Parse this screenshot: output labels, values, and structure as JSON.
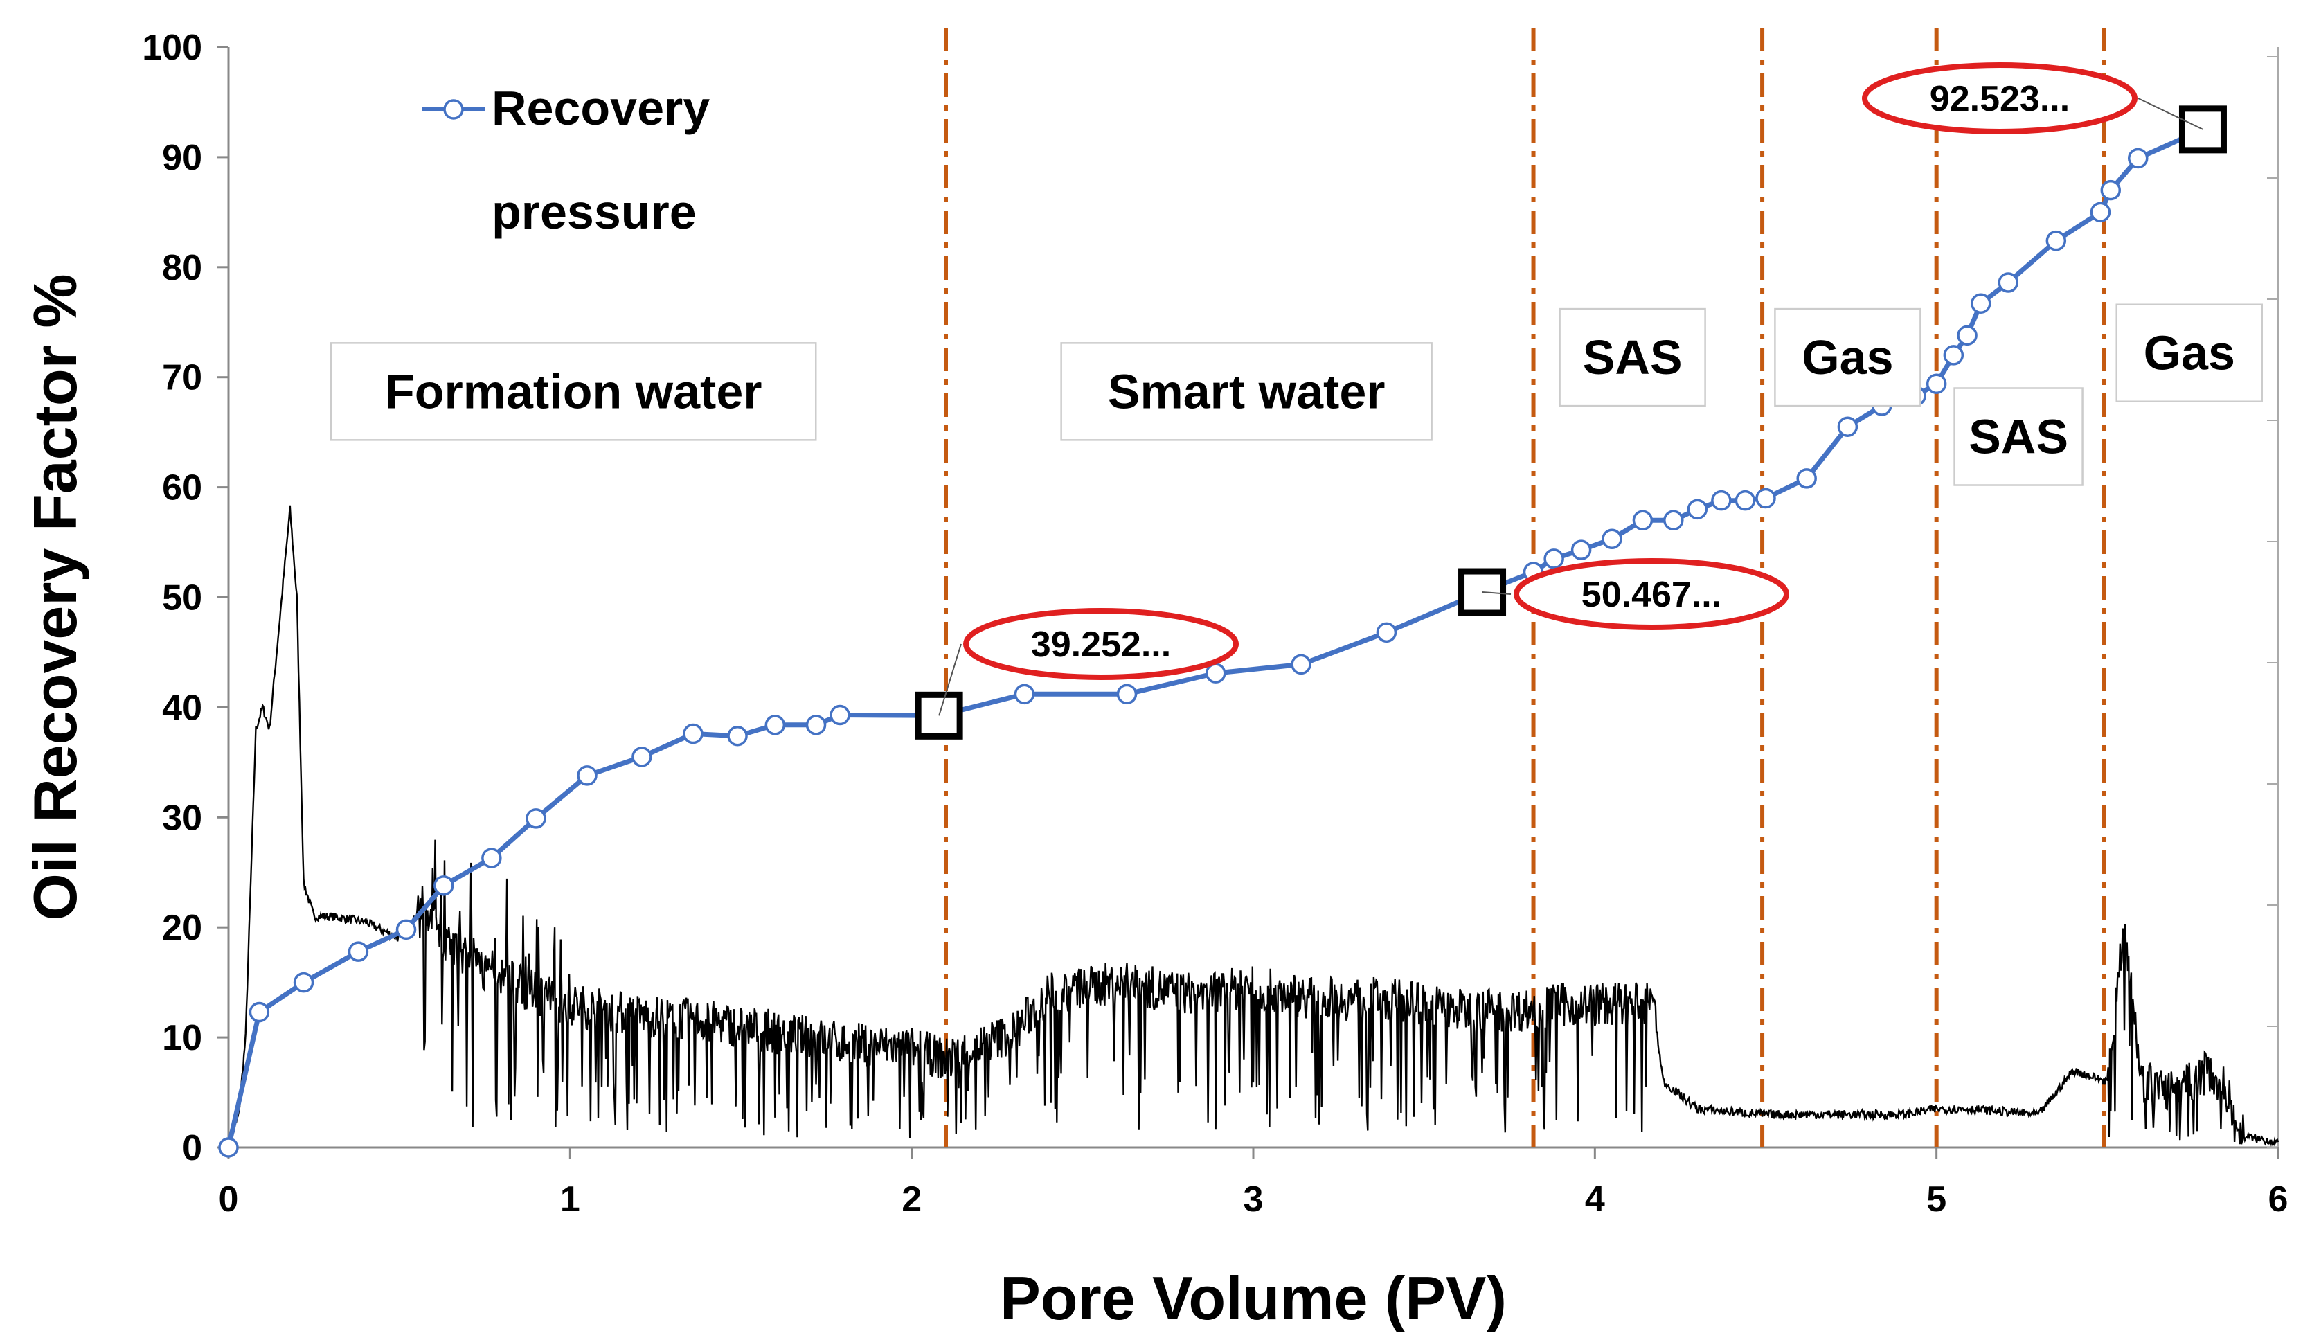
{
  "chart_data": {
    "type": "line",
    "xlabel": "Pore Volume (PV)",
    "ylabel": "Oil Recovery Factor %",
    "xlim": [
      0,
      6
    ],
    "ylim": [
      0,
      100
    ],
    "x_ticks": [
      "0",
      "1",
      "2",
      "3",
      "4",
      "5",
      "6"
    ],
    "y_ticks": [
      "0",
      "10",
      "20",
      "30",
      "40",
      "50",
      "60",
      "70",
      "80",
      "90",
      "100"
    ],
    "legend": {
      "placement": "top-left",
      "entries": [
        {
          "name": "Recovery",
          "color": "#4472C4",
          "marker": "circle"
        },
        {
          "name": "pressure",
          "color": "#000000",
          "marker": "none"
        }
      ]
    },
    "series": [
      {
        "name": "Recovery",
        "color": "#4472C4",
        "x": [
          0,
          0.09,
          0.22,
          0.38,
          0.52,
          0.63,
          0.77,
          0.9,
          1.05,
          1.21,
          1.36,
          1.49,
          1.6,
          1.72,
          1.79,
          2.08,
          2.33,
          2.63,
          2.89,
          3.14,
          3.39,
          3.67,
          3.82,
          3.88,
          3.96,
          4.05,
          4.14,
          4.23,
          4.3,
          4.37,
          4.44,
          4.5,
          4.62,
          4.74,
          4.84,
          4.94,
          5.0,
          5.05,
          5.09,
          5.13,
          5.21,
          5.35,
          5.48,
          5.51,
          5.59,
          5.78
        ],
        "values": [
          0,
          12.3,
          15.0,
          17.8,
          19.8,
          23.8,
          26.3,
          29.9,
          33.8,
          35.5,
          37.6,
          37.4,
          38.4,
          38.4,
          39.3,
          39.25,
          41.2,
          41.2,
          43.1,
          43.9,
          46.8,
          50.47,
          52.3,
          53.5,
          54.3,
          55.3,
          57.0,
          57.0,
          58.0,
          58.8,
          58.8,
          59.0,
          60.8,
          65.5,
          67.4,
          68.3,
          69.4,
          72.0,
          73.8,
          76.7,
          78.6,
          82.4,
          85.0,
          87.0,
          89.9,
          92.52
        ]
      },
      {
        "name": "pressure",
        "color": "#000000",
        "description_points": "noisy differential pressure trace on secondary axis",
        "x": [
          0,
          0.03,
          0.05,
          0.08,
          0.1,
          0.12,
          0.15,
          0.18,
          0.2,
          0.22,
          0.25,
          0.3,
          0.4,
          0.5,
          0.55,
          0.6,
          0.7,
          0.8,
          0.9,
          1.0,
          1.2,
          1.4,
          1.6,
          1.8,
          2.0,
          2.1,
          2.3,
          2.4,
          2.6,
          2.8,
          3.0,
          3.2,
          3.4,
          3.6,
          3.8,
          3.9,
          4.1,
          4.17,
          4.2,
          4.3,
          4.5,
          4.7,
          4.9,
          5.0,
          5.1,
          5.3,
          5.4,
          5.5,
          5.55,
          5.6,
          5.7,
          5.8,
          5.85,
          5.9,
          6.0
        ],
        "values": [
          0,
          3,
          10,
          38,
          40,
          38,
          48,
          58,
          50,
          24,
          21,
          21,
          20.5,
          19,
          21,
          20,
          17,
          15.5,
          14,
          13,
          12,
          11.5,
          10.5,
          9.5,
          9,
          8,
          10.5,
          14,
          15,
          14,
          14.5,
          13.5,
          13.5,
          12.5,
          12.5,
          13,
          13,
          13,
          6,
          3.5,
          3,
          3,
          3,
          3.5,
          3.5,
          3,
          7,
          6,
          21,
          6,
          5,
          7,
          5,
          1,
          0.5
        ]
      }
    ],
    "annotations": [
      {
        "label": "39.252...",
        "x": 2.08,
        "y": 39.25
      },
      {
        "label": "50.467...",
        "x": 3.67,
        "y": 50.47
      },
      {
        "label": "92.523...",
        "x": 5.78,
        "y": 92.52
      }
    ],
    "vertical_lines": [
      2.1,
      3.82,
      4.49,
      5.0,
      5.49
    ],
    "region_labels": [
      {
        "label": "Formation water",
        "x": 1.01,
        "y": 68.7
      },
      {
        "label": "Smart water",
        "x": 2.98,
        "y": 68.7
      },
      {
        "label": "SAS",
        "x": 4.11,
        "y": 71.8
      },
      {
        "label": "Gas",
        "x": 4.74,
        "y": 71.8
      },
      {
        "label": "SAS",
        "x": 5.24,
        "y": 64.6
      },
      {
        "label": "Gas",
        "x": 5.74,
        "y": 72.2
      }
    ]
  }
}
